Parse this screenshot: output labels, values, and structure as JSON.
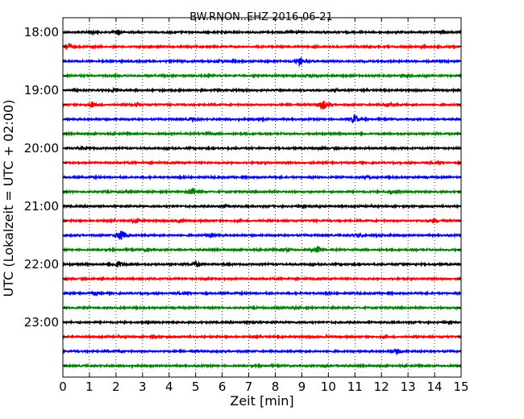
{
  "chart_data": {
    "type": "line",
    "title": "BW.RNON..EHZ 2016-06-21",
    "xlabel": "Zeit  [min]",
    "ylabel": "UTC (Lokalzeit = UTC + 02:00)",
    "xlim": [
      0,
      15
    ],
    "x_ticks": [
      "0",
      "1",
      "2",
      "3",
      "4",
      "5",
      "6",
      "7",
      "8",
      "9",
      "10",
      "11",
      "12",
      "13",
      "14",
      "15"
    ],
    "y_tick_labels": [
      "18:00",
      "19:00",
      "20:00",
      "21:00",
      "22:00",
      "23:00"
    ],
    "grid": "vertical dotted",
    "trace_interval_min": 15,
    "traces": [
      {
        "start": "18:00",
        "color": "#000000",
        "events": [
          [
            2.1,
            0.35
          ],
          [
            1.1,
            0.2
          ],
          [
            8.6,
            0.2
          ],
          [
            14.3,
            0.25
          ]
        ]
      },
      {
        "start": "18:15",
        "color": "#ff0000",
        "events": [
          [
            0.2,
            0.5
          ],
          [
            13.6,
            0.2
          ]
        ]
      },
      {
        "start": "18:30",
        "color": "#0000ff",
        "events": [
          [
            8.9,
            0.5
          ],
          [
            6.0,
            0.15
          ]
        ]
      },
      {
        "start": "18:45",
        "color": "#008000",
        "events": [
          [
            9.3,
            0.2
          ],
          [
            13.0,
            0.15
          ]
        ]
      },
      {
        "start": "19:00",
        "color": "#000000",
        "events": [
          [
            2.0,
            0.2
          ],
          [
            10.3,
            0.15
          ]
        ]
      },
      {
        "start": "19:15",
        "color": "#ff0000",
        "events": [
          [
            1.1,
            0.4
          ],
          [
            2.8,
            0.2
          ],
          [
            9.8,
            0.7
          ],
          [
            12.3,
            0.2
          ]
        ]
      },
      {
        "start": "19:30",
        "color": "#0000ff",
        "events": [
          [
            11.0,
            0.6
          ],
          [
            4.9,
            0.2
          ],
          [
            7.5,
            0.15
          ]
        ]
      },
      {
        "start": "19:45",
        "color": "#008000",
        "events": [
          [
            5.4,
            0.15
          ]
        ]
      },
      {
        "start": "20:00",
        "color": "#000000",
        "events": [
          [
            0.9,
            0.15
          ],
          [
            9.7,
            0.15
          ]
        ]
      },
      {
        "start": "20:15",
        "color": "#ff0000",
        "events": [
          [
            14.1,
            0.15
          ]
        ]
      },
      {
        "start": "20:30",
        "color": "#0000ff",
        "events": [
          [
            11.5,
            0.15
          ]
        ]
      },
      {
        "start": "20:45",
        "color": "#008000",
        "events": [
          [
            4.9,
            0.55
          ],
          [
            12.4,
            0.3
          ],
          [
            2.4,
            0.15
          ]
        ]
      },
      {
        "start": "21:00",
        "color": "#000000",
        "events": [
          [
            6.1,
            0.2
          ],
          [
            9.6,
            0.15
          ]
        ]
      },
      {
        "start": "21:15",
        "color": "#ff0000",
        "events": [
          [
            2.8,
            0.25
          ],
          [
            14.0,
            0.3
          ],
          [
            4.4,
            0.15
          ]
        ]
      },
      {
        "start": "21:30",
        "color": "#0000ff",
        "events": [
          [
            2.2,
            1.0
          ],
          [
            5.6,
            0.3
          ],
          [
            11.1,
            0.3
          ],
          [
            12.0,
            0.2
          ]
        ]
      },
      {
        "start": "21:45",
        "color": "#008000",
        "events": [
          [
            9.6,
            0.45
          ],
          [
            8.4,
            0.15
          ],
          [
            3.2,
            0.15
          ]
        ]
      },
      {
        "start": "22:00",
        "color": "#000000",
        "events": [
          [
            2.1,
            0.4
          ],
          [
            5.0,
            0.25
          ],
          [
            12.8,
            0.15
          ]
        ]
      },
      {
        "start": "22:15",
        "color": "#ff0000",
        "events": [
          [
            5.4,
            0.1
          ]
        ]
      },
      {
        "start": "22:30",
        "color": "#0000ff",
        "events": [
          [
            4.6,
            0.2
          ],
          [
            1.2,
            0.15
          ]
        ]
      },
      {
        "start": "22:45",
        "color": "#008000",
        "events": [
          [
            8.8,
            0.1
          ]
        ]
      },
      {
        "start": "23:00",
        "color": "#000000",
        "events": [
          [
            7.1,
            0.15
          ]
        ]
      },
      {
        "start": "23:15",
        "color": "#ff0000",
        "events": [
          [
            3.4,
            0.1
          ]
        ]
      },
      {
        "start": "23:30",
        "color": "#0000ff",
        "events": [
          [
            12.6,
            0.3
          ],
          [
            2.2,
            0.15
          ]
        ]
      },
      {
        "start": "23:45",
        "color": "#008000",
        "events": [
          [
            9.9,
            0.1
          ]
        ]
      }
    ]
  }
}
